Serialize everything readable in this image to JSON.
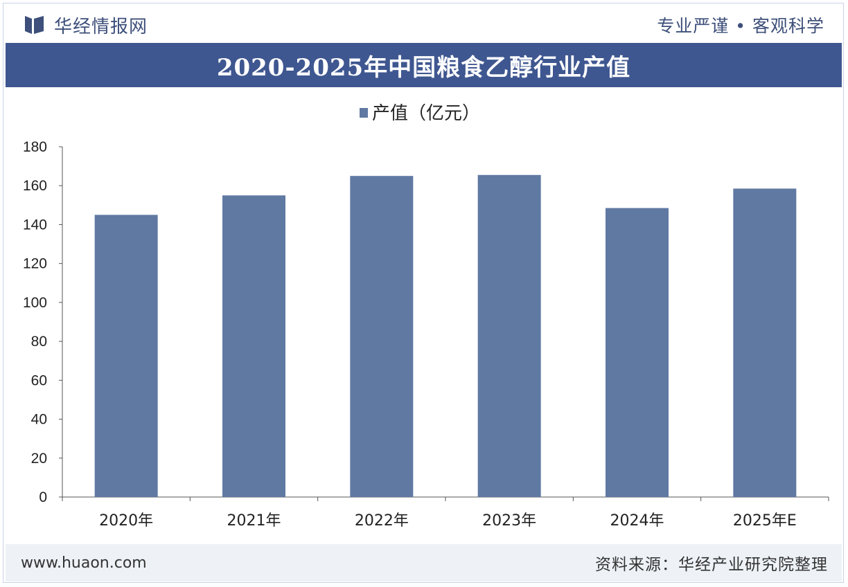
{
  "header": {
    "brand": "华经情报网",
    "motto": "专业严谨 • 客观科学"
  },
  "title": "2020-2025年中国粮食乙醇行业产值",
  "colors": {
    "bar": "#6079a3",
    "title_bar": "#3f5790",
    "axis": "#555555"
  },
  "chart_data": {
    "type": "bar",
    "categories": [
      "2020年",
      "2021年",
      "2022年",
      "2023年",
      "2024年",
      "2025年E"
    ],
    "series": [
      {
        "name": "产值（亿元）",
        "values": [
          145,
          155,
          165,
          165.5,
          148.5,
          158.5
        ]
      }
    ],
    "ylim": [
      0,
      180
    ],
    "yticks": [
      "0",
      "20",
      "40",
      "60",
      "80",
      "100",
      "120",
      "140",
      "160",
      "180"
    ],
    "legend": "top-center",
    "grid": false
  },
  "footer": {
    "website": "www.huaon.com",
    "source": "资料来源：华经产业研究院整理"
  }
}
